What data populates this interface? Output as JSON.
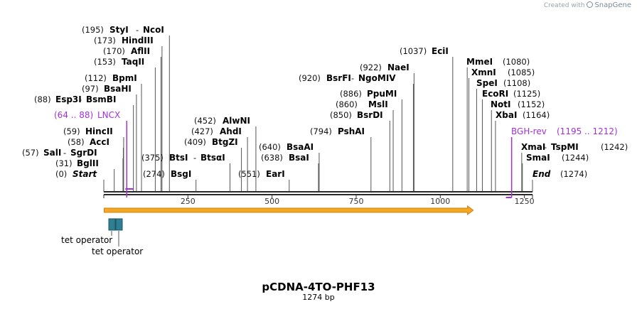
{
  "credit": {
    "prefix": "Created with",
    "brand": "SnapGene"
  },
  "map": {
    "name": "pCDNA-4TO-PHF13",
    "length_label": "1274 bp",
    "total_bp": 1274,
    "ticks": [
      "250",
      "500",
      "750",
      "1000",
      "1250"
    ],
    "tick_values": [
      250,
      500,
      750,
      1000,
      1250
    ],
    "start_label": "Start",
    "start_pos": "(0)",
    "end_label": "End",
    "end_pos": "(1274)"
  },
  "sites": [
    {
      "id": "bglii",
      "pos": "(31)",
      "name": "BglII",
      "bp": 31
    },
    {
      "id": "sali",
      "pos": "(57)",
      "name": "SalI",
      "name2": "SgrDI",
      "bp": 57
    },
    {
      "id": "acci",
      "pos": "(58)",
      "name": "AccI",
      "bp": 58
    },
    {
      "id": "hincii",
      "pos": "(59)",
      "name": "HincII",
      "bp": 59
    },
    {
      "id": "esp3i",
      "pos": "(88)",
      "name": "Esp3I",
      "name2": "BsmBI",
      "bp": 88
    },
    {
      "id": "bsahi",
      "pos": "(97)",
      "name": "BsaHI",
      "bp": 97
    },
    {
      "id": "bpmi",
      "pos": "(112)",
      "name": "BpmI",
      "bp": 112
    },
    {
      "id": "taqii",
      "pos": "(153)",
      "name": "TaqII",
      "bp": 153
    },
    {
      "id": "aflii",
      "pos": "(170)",
      "name": "AflII",
      "bp": 170
    },
    {
      "id": "hindiii",
      "pos": "(173)",
      "name": "HindIII",
      "bp": 173
    },
    {
      "id": "styi",
      "pos": "(195)",
      "name": "StyI",
      "name2": "NcoI",
      "bp": 195
    },
    {
      "id": "bsgi",
      "pos": "(274)",
      "name": "BsgI",
      "bp": 274
    },
    {
      "id": "btsi",
      "pos": "(375)",
      "name": "BtsI",
      "name2": "BtsαI",
      "bp": 375
    },
    {
      "id": "btgzi",
      "pos": "(409)",
      "name": "BtgZI",
      "bp": 409
    },
    {
      "id": "ahdi",
      "pos": "(427)",
      "name": "AhdI",
      "bp": 427
    },
    {
      "id": "alwni",
      "pos": "(452)",
      "name": "AlwNI",
      "bp": 452
    },
    {
      "id": "eari",
      "pos": "(551)",
      "name": "EarI",
      "bp": 551
    },
    {
      "id": "bsai",
      "pos": "(638)",
      "name": "BsaI",
      "bp": 638
    },
    {
      "id": "bsaai",
      "pos": "(640)",
      "name": "BsaAI",
      "bp": 640
    },
    {
      "id": "pshai",
      "pos": "(794)",
      "name": "PshAI",
      "bp": 794
    },
    {
      "id": "bsrdi",
      "pos": "(850)",
      "name": "BsrDI",
      "bp": 850
    },
    {
      "id": "msli",
      "pos": "(860)",
      "name": "MslI",
      "bp": 860
    },
    {
      "id": "ppumi",
      "pos": "(886)",
      "name": "PpuMI",
      "bp": 886
    },
    {
      "id": "bsrfi",
      "pos": "(920)",
      "name": "BsrFI",
      "name2": "NgoMIV",
      "bp": 920
    },
    {
      "id": "naei",
      "pos": "(922)",
      "name": "NaeI",
      "bp": 922
    },
    {
      "id": "ecii",
      "pos": "(1037)",
      "name": "EciI",
      "bp": 1037
    },
    {
      "id": "mmei",
      "pos": "(1080)",
      "name": "MmeI",
      "bp": 1080
    },
    {
      "id": "xmni",
      "pos": "(1085)",
      "name": "XmnI",
      "bp": 1085
    },
    {
      "id": "spei",
      "pos": "(1108)",
      "name": "SpeI",
      "bp": 1108
    },
    {
      "id": "ecori",
      "pos": "(1125)",
      "name": "EcoRI",
      "bp": 1125
    },
    {
      "id": "noti",
      "pos": "(1152)",
      "name": "NotI",
      "bp": 1152
    },
    {
      "id": "xbai",
      "pos": "(1164)",
      "name": "XbaI",
      "bp": 1164
    },
    {
      "id": "xmai",
      "pos": "(1242)",
      "name": "XmaI",
      "name2": "TspMI",
      "bp": 1242
    },
    {
      "id": "smai",
      "pos": "(1244)",
      "name": "SmaI",
      "bp": 1244
    }
  ],
  "primers": [
    {
      "id": "lncx",
      "name": "LNCX",
      "range": "(64 .. 88)",
      "from": 64,
      "to": 88
    },
    {
      "id": "bgh-rev",
      "name": "BGH-rev",
      "range": "(1195 .. 1212)",
      "from": 1195,
      "to": 1212
    }
  ],
  "features": [
    {
      "id": "orf-arrow",
      "type": "arrow",
      "from": 1,
      "to": 1098,
      "fill": "#f7a623",
      "stroke": "#c98313"
    },
    {
      "id": "tet-operator-boxes",
      "type": "box",
      "fill": "#2f7f93",
      "labels": [
        "tet operator",
        "tet operator"
      ]
    }
  ],
  "colors": {
    "primer": "#a531d6",
    "backbone": "#2b2b2b",
    "tet": "#2f7f93",
    "orf": "#f7a623"
  }
}
